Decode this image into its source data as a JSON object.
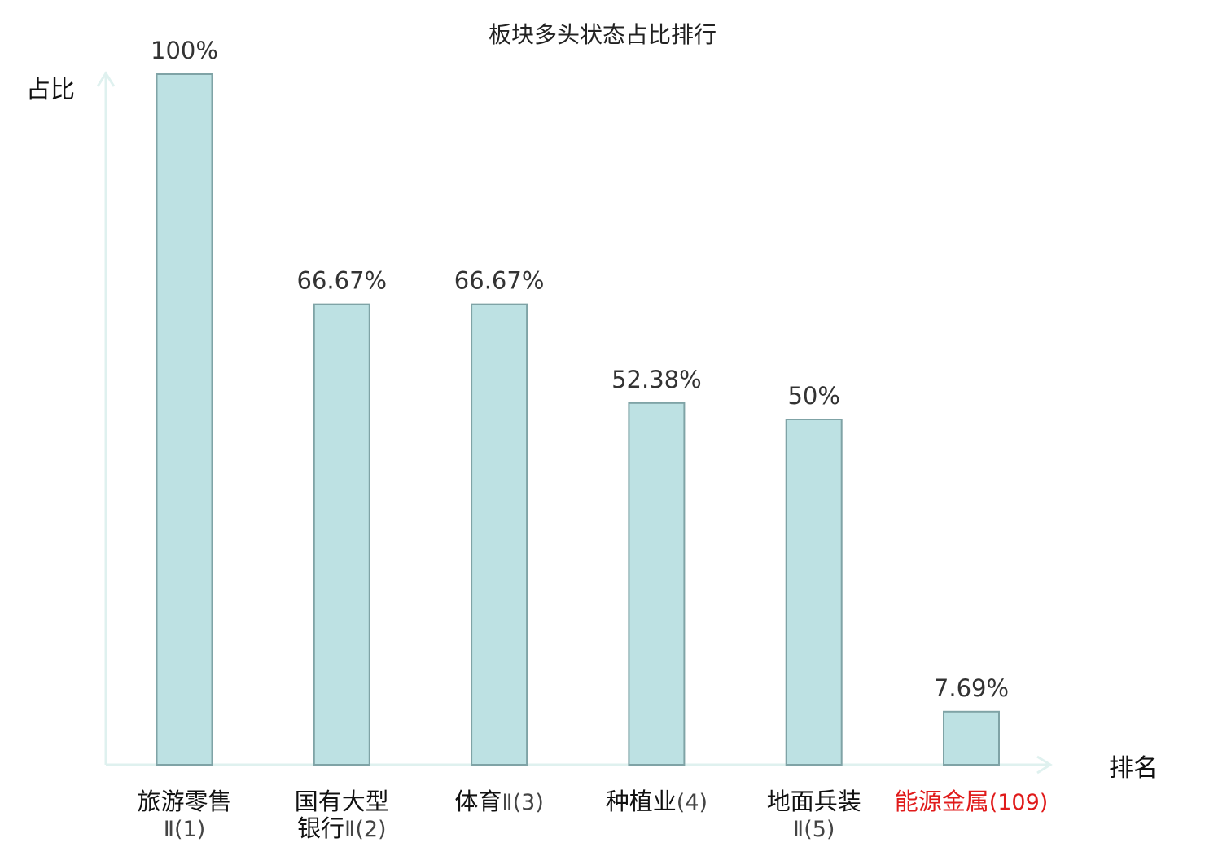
{
  "chart_data": {
    "type": "bar",
    "title": "板块多头状态占比排行",
    "ylabel": "占比",
    "xlabel": "排名",
    "ylim": [
      0,
      100
    ],
    "grid": false,
    "value_suffix": "%",
    "categories": [
      {
        "name_lines": [
          "旅游零售"
        ],
        "suffix": "Ⅱ(1)",
        "highlight": false
      },
      {
        "name_lines": [
          "国有大型",
          "银行"
        ],
        "suffix": "Ⅱ(2)",
        "highlight": false
      },
      {
        "name_lines": [
          "体育"
        ],
        "suffix": "Ⅱ(3)",
        "highlight": false
      },
      {
        "name_lines": [
          "种植业"
        ],
        "suffix": "(4)",
        "highlight": false
      },
      {
        "name_lines": [
          "地面兵装"
        ],
        "suffix": "Ⅱ(5)",
        "highlight": false
      },
      {
        "name_lines": [
          "能源金属"
        ],
        "suffix": "(109)",
        "highlight": true
      }
    ],
    "values": [
      100,
      66.67,
      66.67,
      52.38,
      50,
      7.69
    ],
    "value_labels": [
      "100%",
      "66.67%",
      "66.67%",
      "52.38%",
      "50%",
      "7.69%"
    ],
    "colors": {
      "bar_fill": "#bde1e3",
      "bar_stroke": "#7fa3a6",
      "axis": "#dff1ef",
      "category_text": "#111111",
      "suffix_text": "#444444",
      "highlight_text": "#e01b1b"
    }
  }
}
